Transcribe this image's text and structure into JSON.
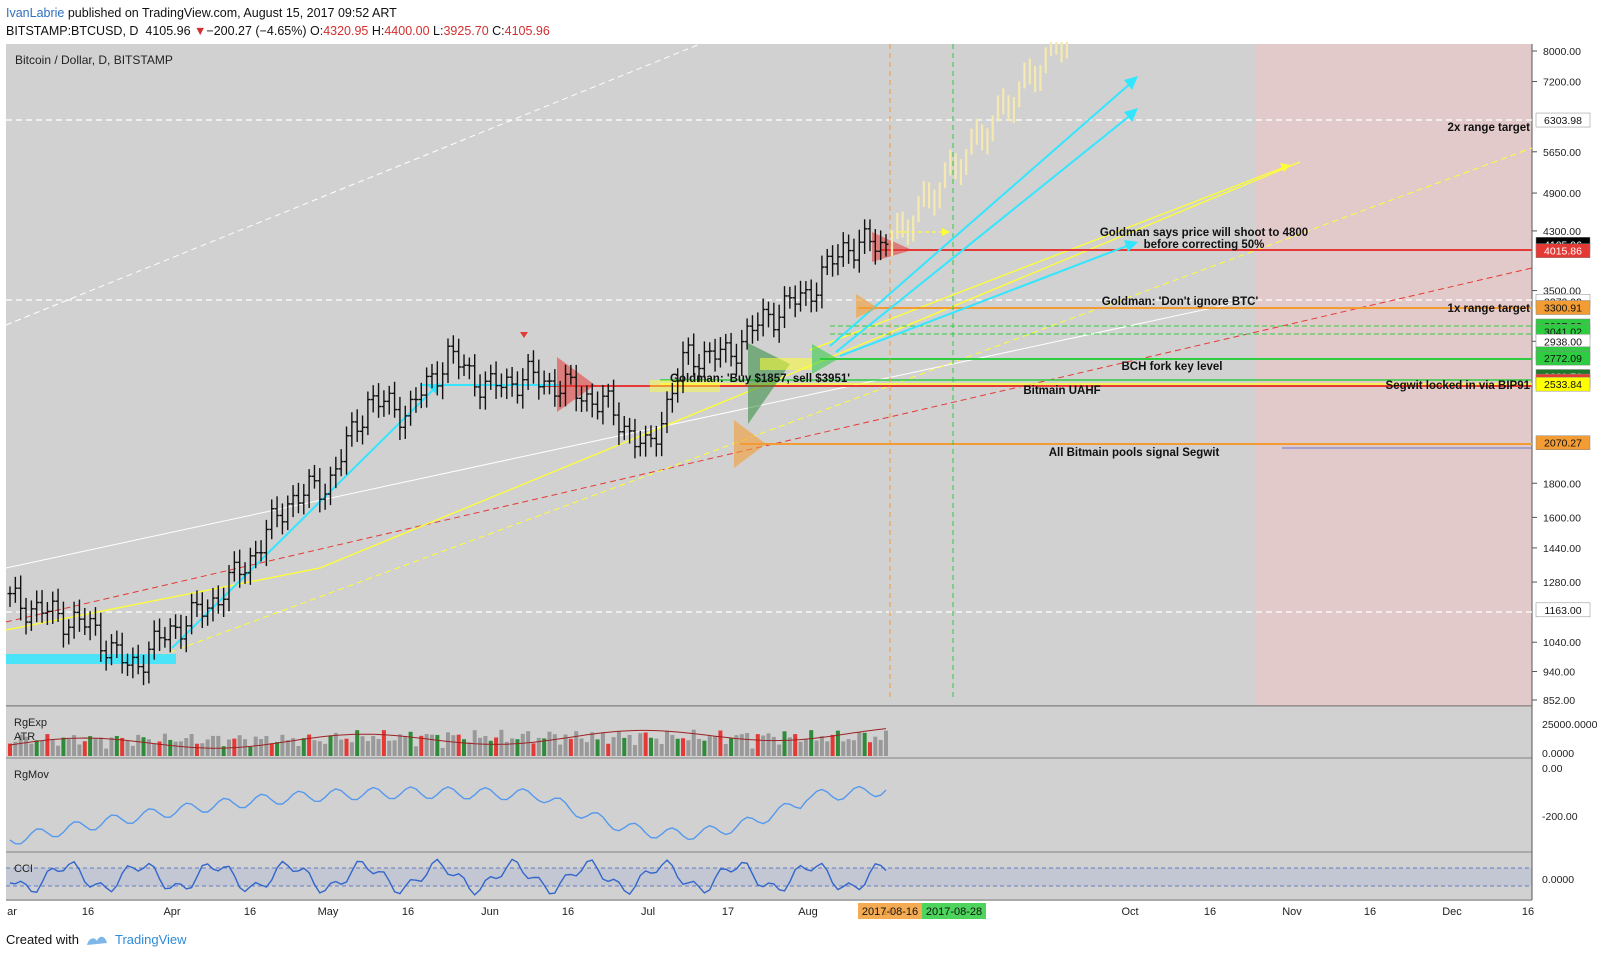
{
  "header": {
    "author": "IvanLabrie",
    "published": " published on TradingView.com, August 15, 2017 09:52 ART",
    "symbol": "BITSTAMP:BTCUSD, D",
    "last": "4105.96",
    "change_arrow": "▼",
    "change": "−200.27 (−4.65%)",
    "o_label": "O:",
    "o_value": "4320.95",
    "h_label": "H:",
    "h_value": "4400.00",
    "l_label": "L:",
    "l_value": "3925.70",
    "c_label": "C:",
    "c_value": "4105.96"
  },
  "chart_title": "Bitcoin / Dollar, D, BITSTAMP",
  "panes": {
    "atr": {
      "label1": "RgExp",
      "label2": "ATR",
      "ticks": [
        "25000.0000",
        "0.0000"
      ]
    },
    "rgmov": {
      "label": "RgMov",
      "ticks": [
        "0.00",
        "-200.00"
      ]
    },
    "cci": {
      "label": "CCI",
      "ticks": [
        "0.0000"
      ]
    }
  },
  "price_ticks": [
    "8000.00",
    "7200.00",
    "5650.00",
    "4900.00",
    "4300.00",
    "3500.00",
    "2938.00",
    "1800.00",
    "1600.00",
    "1440.00",
    "1280.00",
    "1040.00",
    "940.00",
    "852.00"
  ],
  "price_flags": [
    {
      "text": "6303.98",
      "bg": "#ffffff",
      "fg": "#111111"
    },
    {
      "text": "4105.96",
      "bg": "#000000",
      "fg": "#ffffff"
    },
    {
      "text": "4015.86",
      "bg": "#e53935",
      "fg": "#ffffff"
    },
    {
      "text": "3372.99",
      "bg": "#ffffff",
      "fg": "#111111"
    },
    {
      "text": "3300.91",
      "bg": "#f39c34",
      "fg": "#111111"
    },
    {
      "text": "3097.33",
      "bg": "#2ecc40",
      "fg": "#111111"
    },
    {
      "text": "3041.02",
      "bg": "#2ecc40",
      "fg": "#111111"
    },
    {
      "text": "2938.00",
      "bg": "#ffffff",
      "fg": "#111111"
    },
    {
      "text": "2813.51",
      "bg": "#2ecc40",
      "fg": "#111111"
    },
    {
      "text": "2772.09",
      "bg": "#2ecc40",
      "fg": "#111111"
    },
    {
      "text": "2601.76",
      "bg": "#1e7a2a",
      "fg": "#ffffff"
    },
    {
      "text": "2560.50",
      "bg": "#e53935",
      "fg": "#ffffff"
    },
    {
      "text": "2533.84",
      "bg": "#ffff00",
      "fg": "#111111"
    },
    {
      "text": "2070.27",
      "bg": "#f39c34",
      "fg": "#111111"
    },
    {
      "text": "1163.00",
      "bg": "#ffffff",
      "fg": "#111111"
    }
  ],
  "annotations": {
    "range2x": "2x range target",
    "range1x": "1x range target",
    "goldman_4800": "Goldman says price will shoot to 4800",
    "goldman_4800_b": "before correcting 50%",
    "goldman_dont": "Goldman: 'Don't ignore BTC'",
    "bch": "BCH fork key level",
    "goldman_buy": "Goldman: 'Buy $1857, sell $3951'",
    "uahf": "Bitmain UAHF",
    "segwit_locked": "Segwit locked in via BIP91",
    "bitmain_pools": "All Bitmain pools signal Segwit"
  },
  "time_axis": {
    "labels": [
      "ar",
      "16",
      "Apr",
      "16",
      "May",
      "16",
      "Jun",
      "16",
      "Jul",
      "17",
      "Aug",
      "16",
      "Oct",
      "16",
      "Nov",
      "16",
      "Dec",
      "16"
    ],
    "date_badge_1": "2017-08-16",
    "date_badge_2": "2017-08-28"
  },
  "footer": {
    "created": "Created with",
    "brand": "TradingView"
  },
  "colors": {
    "background": "#d1d1d1",
    "projection_zone": "#e3caca",
    "cyan": "#33e6ff",
    "yellow": "#ffff33",
    "red_line": "#e53935",
    "orange_line": "#f39c34",
    "green_line": "#2ecc40",
    "cci_line": "#3366cc",
    "rgmov_line": "#5599ee",
    "atr_line": "#9c2222"
  },
  "chart_data": {
    "type": "candlestick",
    "title": "Bitcoin / Dollar, D, BITSTAMP",
    "last_bar": {
      "date": "2017-08-15",
      "open": 4320.95,
      "high": 4400.0,
      "low": 3925.7,
      "close": 4105.96
    },
    "y_axis_scale": "log",
    "y_range": [
      852,
      8000
    ],
    "x_range": [
      "2017-03",
      "2017-12-16"
    ],
    "support_resistance": [
      4015.86,
      3300.91,
      3097.33,
      3041.02,
      2938.0,
      2813.51,
      2772.09,
      2601.76,
      2560.5,
      2533.84,
      2070.27,
      1163.0,
      6303.98,
      3372.99
    ],
    "closes_approx": [
      {
        "x": "Mar 1",
        "y": 1200
      },
      {
        "x": "Mar 8",
        "y": 1150
      },
      {
        "x": "Mar 16",
        "y": 1100
      },
      {
        "x": "Mar 24",
        "y": 950
      },
      {
        "x": "Apr 1",
        "y": 1080
      },
      {
        "x": "Apr 16",
        "y": 1180
      },
      {
        "x": "May 1",
        "y": 1380
      },
      {
        "x": "May 10",
        "y": 1700
      },
      {
        "x": "May 16",
        "y": 1800
      },
      {
        "x": "May 25",
        "y": 2400
      },
      {
        "x": "Jun 1",
        "y": 2300
      },
      {
        "x": "Jun 8",
        "y": 2800
      },
      {
        "x": "Jun 16",
        "y": 2500
      },
      {
        "x": "Jun 24",
        "y": 2600
      },
      {
        "x": "Jul 1",
        "y": 2500
      },
      {
        "x": "Jul 10",
        "y": 2350
      },
      {
        "x": "Jul 17",
        "y": 2000
      },
      {
        "x": "Jul 20",
        "y": 2800
      },
      {
        "x": "Aug 1",
        "y": 2800
      },
      {
        "x": "Aug 5",
        "y": 3200
      },
      {
        "x": "Aug 10",
        "y": 3450
      },
      {
        "x": "Aug 13",
        "y": 4100
      },
      {
        "x": "Aug 15",
        "y": 4105.96
      }
    ]
  }
}
